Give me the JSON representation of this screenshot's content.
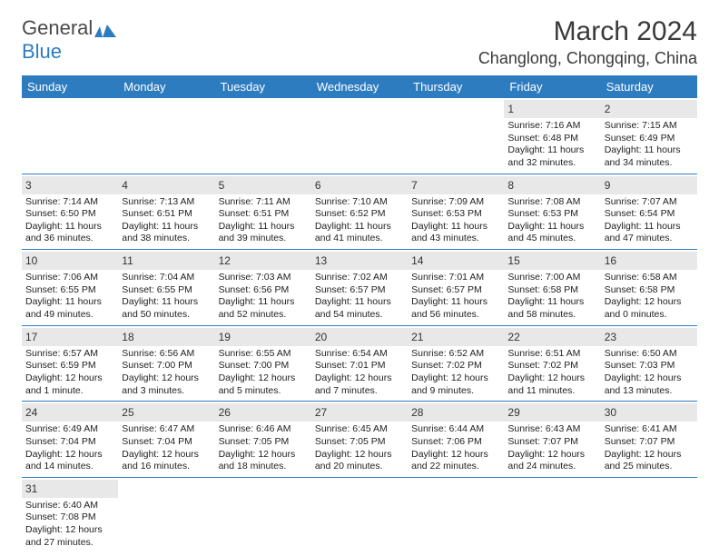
{
  "logo": {
    "part1": "General",
    "part2": "Blue"
  },
  "title": "March 2024",
  "location": "Changlong, Chongqing, China",
  "colors": {
    "header_bg": "#2e7cc0",
    "header_text": "#ffffff",
    "daynum_bg": "#e8e8e8",
    "border": "#2e7cc0",
    "text": "#222222",
    "logo_gray": "#4a4a4a",
    "logo_blue": "#2e7cc0"
  },
  "fonts": {
    "title_size": 30,
    "location_size": 18,
    "weekday_size": 13,
    "day_size": 12,
    "info_size": 10.5
  },
  "weekdays": [
    "Sunday",
    "Monday",
    "Tuesday",
    "Wednesday",
    "Thursday",
    "Friday",
    "Saturday"
  ],
  "calendar": {
    "type": "table",
    "columns": 7,
    "lead_blanks": 5,
    "days": [
      {
        "n": 1,
        "sunrise": "7:16 AM",
        "sunset": "6:48 PM",
        "daylight": "11 hours and 32 minutes."
      },
      {
        "n": 2,
        "sunrise": "7:15 AM",
        "sunset": "6:49 PM",
        "daylight": "11 hours and 34 minutes."
      },
      {
        "n": 3,
        "sunrise": "7:14 AM",
        "sunset": "6:50 PM",
        "daylight": "11 hours and 36 minutes."
      },
      {
        "n": 4,
        "sunrise": "7:13 AM",
        "sunset": "6:51 PM",
        "daylight": "11 hours and 38 minutes."
      },
      {
        "n": 5,
        "sunrise": "7:11 AM",
        "sunset": "6:51 PM",
        "daylight": "11 hours and 39 minutes."
      },
      {
        "n": 6,
        "sunrise": "7:10 AM",
        "sunset": "6:52 PM",
        "daylight": "11 hours and 41 minutes."
      },
      {
        "n": 7,
        "sunrise": "7:09 AM",
        "sunset": "6:53 PM",
        "daylight": "11 hours and 43 minutes."
      },
      {
        "n": 8,
        "sunrise": "7:08 AM",
        "sunset": "6:53 PM",
        "daylight": "11 hours and 45 minutes."
      },
      {
        "n": 9,
        "sunrise": "7:07 AM",
        "sunset": "6:54 PM",
        "daylight": "11 hours and 47 minutes."
      },
      {
        "n": 10,
        "sunrise": "7:06 AM",
        "sunset": "6:55 PM",
        "daylight": "11 hours and 49 minutes."
      },
      {
        "n": 11,
        "sunrise": "7:04 AM",
        "sunset": "6:55 PM",
        "daylight": "11 hours and 50 minutes."
      },
      {
        "n": 12,
        "sunrise": "7:03 AM",
        "sunset": "6:56 PM",
        "daylight": "11 hours and 52 minutes."
      },
      {
        "n": 13,
        "sunrise": "7:02 AM",
        "sunset": "6:57 PM",
        "daylight": "11 hours and 54 minutes."
      },
      {
        "n": 14,
        "sunrise": "7:01 AM",
        "sunset": "6:57 PM",
        "daylight": "11 hours and 56 minutes."
      },
      {
        "n": 15,
        "sunrise": "7:00 AM",
        "sunset": "6:58 PM",
        "daylight": "11 hours and 58 minutes."
      },
      {
        "n": 16,
        "sunrise": "6:58 AM",
        "sunset": "6:58 PM",
        "daylight": "12 hours and 0 minutes."
      },
      {
        "n": 17,
        "sunrise": "6:57 AM",
        "sunset": "6:59 PM",
        "daylight": "12 hours and 1 minute."
      },
      {
        "n": 18,
        "sunrise": "6:56 AM",
        "sunset": "7:00 PM",
        "daylight": "12 hours and 3 minutes."
      },
      {
        "n": 19,
        "sunrise": "6:55 AM",
        "sunset": "7:00 PM",
        "daylight": "12 hours and 5 minutes."
      },
      {
        "n": 20,
        "sunrise": "6:54 AM",
        "sunset": "7:01 PM",
        "daylight": "12 hours and 7 minutes."
      },
      {
        "n": 21,
        "sunrise": "6:52 AM",
        "sunset": "7:02 PM",
        "daylight": "12 hours and 9 minutes."
      },
      {
        "n": 22,
        "sunrise": "6:51 AM",
        "sunset": "7:02 PM",
        "daylight": "12 hours and 11 minutes."
      },
      {
        "n": 23,
        "sunrise": "6:50 AM",
        "sunset": "7:03 PM",
        "daylight": "12 hours and 13 minutes."
      },
      {
        "n": 24,
        "sunrise": "6:49 AM",
        "sunset": "7:04 PM",
        "daylight": "12 hours and 14 minutes."
      },
      {
        "n": 25,
        "sunrise": "6:47 AM",
        "sunset": "7:04 PM",
        "daylight": "12 hours and 16 minutes."
      },
      {
        "n": 26,
        "sunrise": "6:46 AM",
        "sunset": "7:05 PM",
        "daylight": "12 hours and 18 minutes."
      },
      {
        "n": 27,
        "sunrise": "6:45 AM",
        "sunset": "7:05 PM",
        "daylight": "12 hours and 20 minutes."
      },
      {
        "n": 28,
        "sunrise": "6:44 AM",
        "sunset": "7:06 PM",
        "daylight": "12 hours and 22 minutes."
      },
      {
        "n": 29,
        "sunrise": "6:43 AM",
        "sunset": "7:07 PM",
        "daylight": "12 hours and 24 minutes."
      },
      {
        "n": 30,
        "sunrise": "6:41 AM",
        "sunset": "7:07 PM",
        "daylight": "12 hours and 25 minutes."
      },
      {
        "n": 31,
        "sunrise": "6:40 AM",
        "sunset": "7:08 PM",
        "daylight": "12 hours and 27 minutes."
      }
    ],
    "labels": {
      "sunrise": "Sunrise:",
      "sunset": "Sunset:",
      "daylight": "Daylight:"
    }
  }
}
